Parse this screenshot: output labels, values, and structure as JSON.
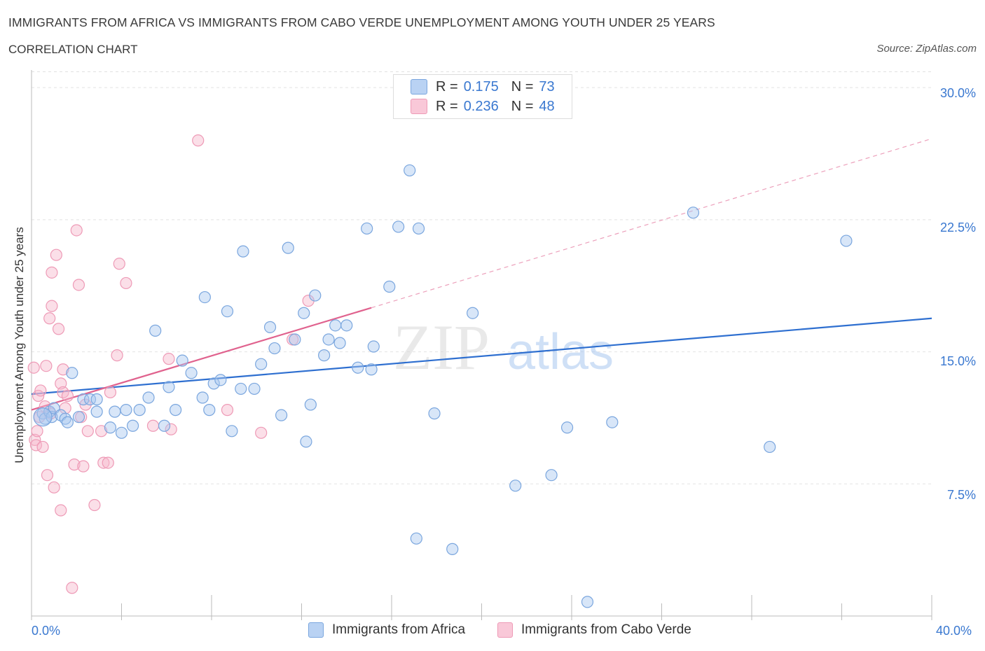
{
  "header": {
    "title": "IMMIGRANTS FROM AFRICA VS IMMIGRANTS FROM CABO VERDE UNEMPLOYMENT AMONG YOUTH UNDER 25 YEARS",
    "subtitle": "CORRELATION CHART",
    "source": "Source: ZipAtlas.com"
  },
  "legend": {
    "rows": [
      {
        "r_label": "R =",
        "r_value": "0.175",
        "n_label": "N =",
        "n_value": "73"
      },
      {
        "r_label": "R =",
        "r_value": "0.236",
        "n_label": "N =",
        "n_value": "48"
      }
    ]
  },
  "bottom_legend": [
    "Immigrants from Africa",
    "Immigrants from Cabo Verde"
  ],
  "colors": {
    "africa_fill": "#a9c7ef",
    "africa_stroke": "#7aa6de",
    "africa_line": "#2e6fd0",
    "caboverde_fill": "#f6b8cc",
    "caboverde_stroke": "#ee9ab6",
    "caboverde_line": "#e0628e",
    "tick_text": "#3a78d0"
  },
  "watermark": {
    "zip": "ZIP",
    "atlas": "atlas"
  },
  "chart_data": {
    "type": "scatter",
    "title": "IMMIGRANTS FROM AFRICA VS IMMIGRANTS FROM CABO VERDE UNEMPLOYMENT AMONG YOUTH UNDER 25 YEARS",
    "xlabel": "",
    "ylabel": "Unemployment Among Youth under 25 years",
    "xlim": [
      0,
      40
    ],
    "ylim": [
      0,
      31.0
    ],
    "x_tick_labels": [
      "0.0%",
      "40.0%"
    ],
    "y_ticks": [
      7.5,
      15.0,
      22.5,
      30.0
    ],
    "y_tick_labels": [
      "7.5%",
      "15.0%",
      "22.5%",
      "30.0%"
    ],
    "grid": true,
    "series": [
      {
        "name": "Immigrants from Africa",
        "R": 0.175,
        "N": 73,
        "trend": {
          "x0": 0,
          "y0": 12.6,
          "x1": 40,
          "y1": 16.9
        },
        "points": [
          [
            0.5,
            11.5
          ],
          [
            0.6,
            11.2
          ],
          [
            0.8,
            11.6
          ],
          [
            0.9,
            11.3
          ],
          [
            1.0,
            11.8
          ],
          [
            1.3,
            11.4
          ],
          [
            1.5,
            11.2
          ],
          [
            1.8,
            13.8
          ],
          [
            2.1,
            11.3
          ],
          [
            2.3,
            12.3
          ],
          [
            2.6,
            12.3
          ],
          [
            2.9,
            12.3
          ],
          [
            2.9,
            11.6
          ],
          [
            3.5,
            10.7
          ],
          [
            3.7,
            11.6
          ],
          [
            4.0,
            10.4
          ],
          [
            4.2,
            11.7
          ],
          [
            4.5,
            10.8
          ],
          [
            4.8,
            11.7
          ],
          [
            5.2,
            12.4
          ],
          [
            5.5,
            16.2
          ],
          [
            5.9,
            10.8
          ],
          [
            6.1,
            13.0
          ],
          [
            6.4,
            11.7
          ],
          [
            6.7,
            14.5
          ],
          [
            7.1,
            13.8
          ],
          [
            7.6,
            12.4
          ],
          [
            7.7,
            18.1
          ],
          [
            7.9,
            11.7
          ],
          [
            8.1,
            13.2
          ],
          [
            8.4,
            13.4
          ],
          [
            8.7,
            17.3
          ],
          [
            8.9,
            10.5
          ],
          [
            9.3,
            12.9
          ],
          [
            9.4,
            20.7
          ],
          [
            9.9,
            12.9
          ],
          [
            10.2,
            14.3
          ],
          [
            10.6,
            16.4
          ],
          [
            10.8,
            15.2
          ],
          [
            11.1,
            11.4
          ],
          [
            11.4,
            20.9
          ],
          [
            11.7,
            15.7
          ],
          [
            12.1,
            17.2
          ],
          [
            12.2,
            9.9
          ],
          [
            12.4,
            12.0
          ],
          [
            12.6,
            18.2
          ],
          [
            13.0,
            14.8
          ],
          [
            13.2,
            15.7
          ],
          [
            13.5,
            16.5
          ],
          [
            13.7,
            15.5
          ],
          [
            14.0,
            16.5
          ],
          [
            14.5,
            14.1
          ],
          [
            14.9,
            22.0
          ],
          [
            15.1,
            14.0
          ],
          [
            15.2,
            15.3
          ],
          [
            15.9,
            18.7
          ],
          [
            16.3,
            22.1
          ],
          [
            16.7,
            29.3
          ],
          [
            16.8,
            25.3
          ],
          [
            17.2,
            22.0
          ],
          [
            17.1,
            4.4
          ],
          [
            17.9,
            11.5
          ],
          [
            18.7,
            3.8
          ],
          [
            19.6,
            17.2
          ],
          [
            21.5,
            7.4
          ],
          [
            23.1,
            8.0
          ],
          [
            23.8,
            10.7
          ],
          [
            25.8,
            11.0
          ],
          [
            29.4,
            22.9
          ],
          [
            32.8,
            9.6
          ],
          [
            36.2,
            21.3
          ],
          [
            24.7,
            0.8
          ],
          [
            1.6,
            11.0
          ]
        ]
      },
      {
        "name": "Immigrants from Cabo Verde",
        "R": 0.236,
        "N": 48,
        "trend": {
          "x0": 0,
          "y0": 11.7,
          "x1": 15.1,
          "y1": 17.5
        },
        "trend_ext": {
          "x0": 15.1,
          "y0": 17.5,
          "x1": 40,
          "y1": 27.1
        },
        "points": [
          [
            0.1,
            14.1
          ],
          [
            0.15,
            10.0
          ],
          [
            0.2,
            9.7
          ],
          [
            0.25,
            10.5
          ],
          [
            0.3,
            12.5
          ],
          [
            0.35,
            11.3
          ],
          [
            0.4,
            12.8
          ],
          [
            0.5,
            9.6
          ],
          [
            0.6,
            11.9
          ],
          [
            0.65,
            14.2
          ],
          [
            0.7,
            8.0
          ],
          [
            0.8,
            16.9
          ],
          [
            0.85,
            11.5
          ],
          [
            0.9,
            17.6
          ],
          [
            0.9,
            19.5
          ],
          [
            1.0,
            7.3
          ],
          [
            1.1,
            20.5
          ],
          [
            1.2,
            16.3
          ],
          [
            1.3,
            6.0
          ],
          [
            1.3,
            13.2
          ],
          [
            1.4,
            12.7
          ],
          [
            1.4,
            14.0
          ],
          [
            1.5,
            11.8
          ],
          [
            1.6,
            12.5
          ],
          [
            1.8,
            1.6
          ],
          [
            1.9,
            8.6
          ],
          [
            2.0,
            21.9
          ],
          [
            2.1,
            18.8
          ],
          [
            2.2,
            11.3
          ],
          [
            2.3,
            8.5
          ],
          [
            2.4,
            12.0
          ],
          [
            2.5,
            10.5
          ],
          [
            2.8,
            6.3
          ],
          [
            3.1,
            10.5
          ],
          [
            3.2,
            8.7
          ],
          [
            3.4,
            8.7
          ],
          [
            3.5,
            12.7
          ],
          [
            3.8,
            14.8
          ],
          [
            3.9,
            20.0
          ],
          [
            4.2,
            18.9
          ],
          [
            5.4,
            10.8
          ],
          [
            6.1,
            14.6
          ],
          [
            6.2,
            10.6
          ],
          [
            7.4,
            27.0
          ],
          [
            8.7,
            11.7
          ],
          [
            10.2,
            10.4
          ],
          [
            11.6,
            15.7
          ],
          [
            12.3,
            17.9
          ]
        ]
      }
    ]
  }
}
